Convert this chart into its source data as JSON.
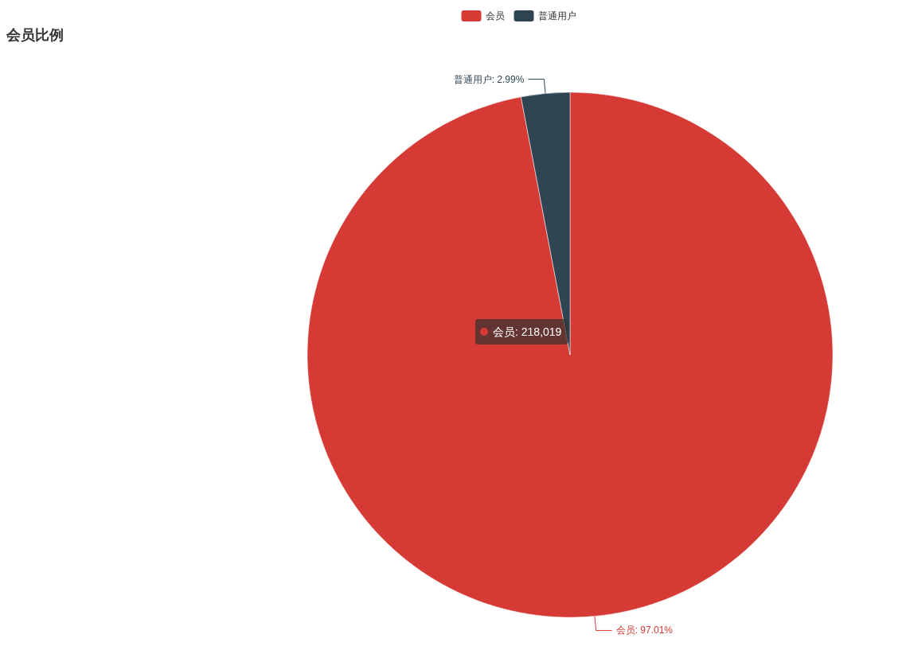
{
  "chart_data": {
    "type": "pie",
    "title": "会员比例",
    "categories": [
      "会员",
      "普通用户"
    ],
    "values": [
      97.01,
      2.99
    ],
    "value_labels": [
      "会员: 97.01%",
      "普通用户: 2.99%"
    ],
    "colors": [
      "#d53a35",
      "#2f4554"
    ],
    "legend": "top",
    "annotations": [
      "会员: 218,019"
    ]
  }
}
